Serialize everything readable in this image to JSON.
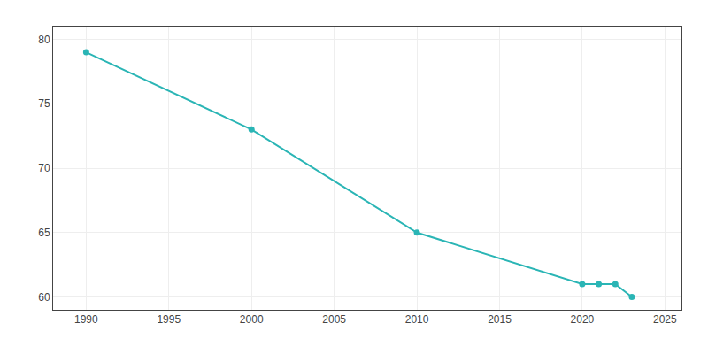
{
  "chart_data": {
    "type": "line",
    "x": [
      1990,
      2000,
      2010,
      2020,
      2021,
      2022,
      2023
    ],
    "values": [
      79,
      73,
      65,
      61,
      61,
      61,
      60
    ],
    "color": "#2ab5b5",
    "marker": "circle",
    "xlim": [
      1988,
      2026
    ],
    "ylim": [
      59,
      81
    ],
    "xticks": [
      1990,
      1995,
      2000,
      2005,
      2010,
      2015,
      2020,
      2025
    ],
    "yticks": [
      60,
      65,
      70,
      75,
      80
    ],
    "grid": true
  }
}
